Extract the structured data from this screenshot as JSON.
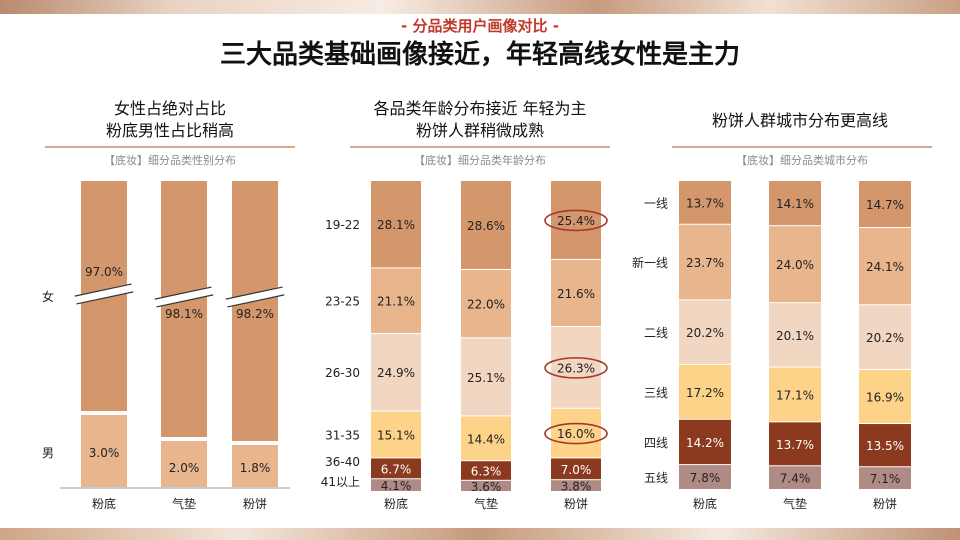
{
  "header": {
    "subtitle": "- 分品类用户画像对比 -",
    "title": "三大品类基础画像接近，年轻高线女性是主力"
  },
  "panels": [
    {
      "heading": [
        "女性占绝对占比",
        "粉底男性占比稍高"
      ],
      "source": "【底妆】细分品类性别分布"
    },
    {
      "heading": [
        "各品类年龄分布接近 年轻为主",
        "粉饼人群稍微成熟"
      ],
      "source": "【底妆】细分品类年龄分布"
    },
    {
      "heading": [
        "粉饼人群城市分布更高线"
      ],
      "source": "【底妆】细分品类城市分布"
    }
  ],
  "chart_data": [
    {
      "type": "bar",
      "stacked": true,
      "categories": [
        "粉底",
        "气垫",
        "粉饼"
      ],
      "series": [
        {
          "name": "女",
          "values": [
            97.0,
            98.1,
            98.2
          ],
          "labels": [
            "97.0%",
            "98.1%",
            "98.2%"
          ],
          "color": "#d4976b"
        },
        {
          "name": "男",
          "values": [
            3.0,
            2.0,
            1.8
          ],
          "labels": [
            "3.0%",
            "2.0%",
            "1.8%"
          ],
          "color": "#e8b58d"
        }
      ],
      "axis_break": true
    },
    {
      "type": "bar",
      "stacked": true,
      "categories": [
        "粉底",
        "气垫",
        "粉饼"
      ],
      "series": [
        {
          "name": "19-22",
          "values": [
            28.1,
            28.6,
            25.4
          ],
          "labels": [
            "28.1%",
            "28.6%",
            "25.4%"
          ],
          "color": "#d4976b"
        },
        {
          "name": "23-25",
          "values": [
            21.1,
            22.0,
            21.6
          ],
          "labels": [
            "21.1%",
            "22.0%",
            "21.6%"
          ],
          "color": "#e8b58d"
        },
        {
          "name": "26-30",
          "values": [
            24.9,
            25.1,
            26.3
          ],
          "labels": [
            "24.9%",
            "25.1%",
            "26.3%"
          ],
          "color": "#f1d6c1"
        },
        {
          "name": "31-35",
          "values": [
            15.1,
            14.4,
            16.0
          ],
          "labels": [
            "15.1%",
            "14.4%",
            "16.0%"
          ],
          "color": "#fdd38a"
        },
        {
          "name": "36-40",
          "values": [
            6.7,
            6.3,
            7.0
          ],
          "labels": [
            "6.7%",
            "6.3%",
            "7.0%"
          ],
          "color": "#8b3a1f"
        },
        {
          "name": "41以上",
          "values": [
            4.1,
            3.6,
            3.8
          ],
          "labels": [
            "4.1%",
            "3.6%",
            "3.8%"
          ],
          "color": "#b08a84"
        }
      ],
      "highlight": {
        "category": "粉饼",
        "series": [
          "19-22",
          "26-30",
          "31-35"
        ],
        "color": "#a33a2c"
      }
    },
    {
      "type": "bar",
      "stacked": true,
      "categories": [
        "粉底",
        "气垫",
        "粉饼"
      ],
      "series": [
        {
          "name": "一线",
          "values": [
            13.7,
            14.1,
            14.7
          ],
          "labels": [
            "13.7%",
            "14.1%",
            "14.7%"
          ],
          "color": "#d4976b"
        },
        {
          "name": "新一线",
          "values": [
            23.7,
            24.0,
            24.1
          ],
          "labels": [
            "23.7%",
            "24.0%",
            "24.1%"
          ],
          "color": "#e8b58d"
        },
        {
          "name": "二线",
          "values": [
            20.2,
            20.1,
            20.2
          ],
          "labels": [
            "20.2%",
            "20.1%",
            "20.2%"
          ],
          "color": "#f1d6c1"
        },
        {
          "name": "三线",
          "values": [
            17.2,
            17.1,
            16.9
          ],
          "labels": [
            "17.2%",
            "17.1%",
            "16.9%"
          ],
          "color": "#fdd38a"
        },
        {
          "name": "四线",
          "values": [
            14.2,
            13.7,
            13.5
          ],
          "labels": [
            "14.2%",
            "13.7%",
            "13.5%"
          ],
          "color": "#8b3a1f"
        },
        {
          "name": "五线",
          "values": [
            7.8,
            7.4,
            7.1
          ],
          "labels": [
            "7.8%",
            "7.4%",
            "7.1%"
          ],
          "color": "#b08a84"
        }
      ]
    }
  ]
}
